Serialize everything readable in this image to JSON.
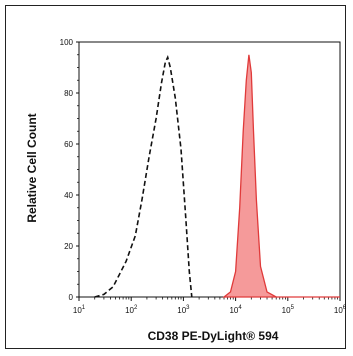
{
  "chart_data": {
    "type": "area",
    "xlabel": "CD38 PE-DyLight® 594",
    "ylabel": "Relative Cell Count",
    "x_scale": "log",
    "xlim": [
      10,
      1000000
    ],
    "ylim": [
      0,
      100
    ],
    "y_ticks": [
      "0",
      "20",
      "40",
      "60",
      "80",
      "100"
    ],
    "x_ticks": [
      {
        "base": "10",
        "exp": "1"
      },
      {
        "base": "10",
        "exp": "2"
      },
      {
        "base": "10",
        "exp": "3"
      },
      {
        "base": "10",
        "exp": "4"
      },
      {
        "base": "10",
        "exp": "5"
      },
      {
        "base": "10",
        "exp": "6"
      }
    ],
    "series": [
      {
        "style": "dashed",
        "color": "#111111",
        "points": [
          [
            20,
            0
          ],
          [
            30,
            1
          ],
          [
            45,
            4
          ],
          [
            60,
            9
          ],
          [
            80,
            14
          ],
          [
            120,
            24
          ],
          [
            160,
            38
          ],
          [
            220,
            55
          ],
          [
            300,
            70
          ],
          [
            380,
            84
          ],
          [
            450,
            92
          ],
          [
            500,
            94
          ],
          [
            560,
            90
          ],
          [
            700,
            78
          ],
          [
            900,
            58
          ],
          [
            1100,
            32
          ],
          [
            1300,
            10
          ],
          [
            1450,
            0
          ]
        ]
      },
      {
        "style": "filled",
        "color": "#e03a3a",
        "fill": "#f59a9a",
        "points": [
          [
            6000,
            0
          ],
          [
            8000,
            2
          ],
          [
            10000,
            10
          ],
          [
            12000,
            35
          ],
          [
            14000,
            65
          ],
          [
            16000,
            85
          ],
          [
            18000,
            95
          ],
          [
            20000,
            88
          ],
          [
            22000,
            65
          ],
          [
            25000,
            38
          ],
          [
            30000,
            12
          ],
          [
            40000,
            2
          ],
          [
            60000,
            0
          ],
          [
            200000,
            0
          ],
          [
            1000000,
            0
          ]
        ]
      }
    ]
  }
}
